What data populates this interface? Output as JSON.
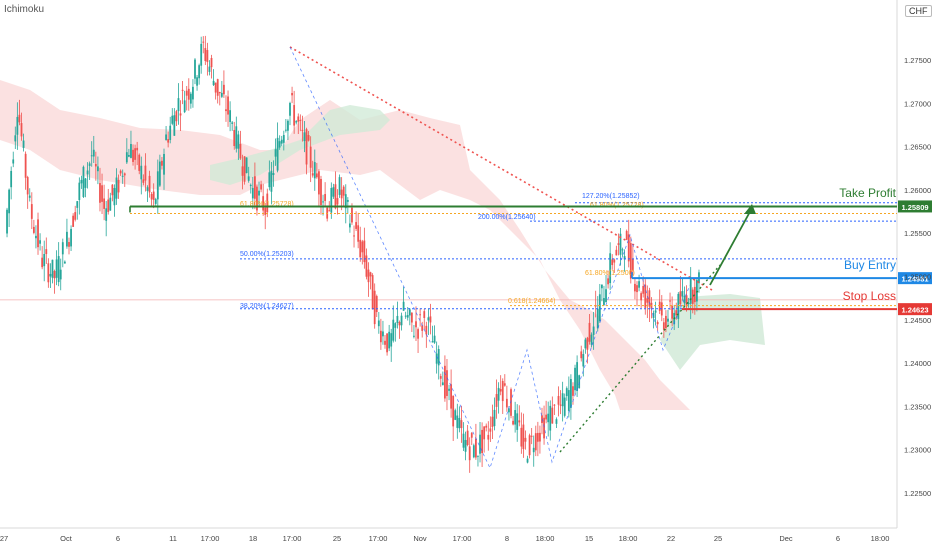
{
  "indicator_label": "Ichimoku",
  "currency_badge": "CHF",
  "colors": {
    "up": "#26a69a",
    "down": "#ef5350",
    "cloud_bear": "#f8c9c9",
    "cloud_bull": "#cfe9d6",
    "trend_red": "#ef5350",
    "fib_blue": "#2962ff",
    "fib_orange": "#f5a623",
    "take_profit": "#2e7d32",
    "buy_entry": "#1e88e5",
    "stop_loss": "#e53935",
    "projection": "#2e7d32"
  },
  "chart_data": {
    "type": "candlestick",
    "symbol_currency": "CHF",
    "ylim": [
      1.22,
      1.28
    ],
    "y_ticks": [
      "1.27500",
      "1.27000",
      "1.26500",
      "1.26000",
      "1.25500",
      "1.25000",
      "1.24500",
      "1.24000",
      "1.23500",
      "1.23000",
      "1.22500"
    ],
    "x_ticks": [
      "27",
      "Oct",
      "6",
      "11",
      "17:00",
      "18",
      "17:00",
      "25",
      "17:00",
      "Nov",
      "17:00",
      "8",
      "18:00",
      "15",
      "18:00",
      "22",
      "25",
      "Dec",
      "6",
      "18:00"
    ],
    "price_path": [
      [
        1.255,
        1.27,
        1.258,
        1.252,
        1.25,
        1.254,
        1.26,
        1.264,
        1.258,
        1.26,
        1.265,
        1.262,
        1.258,
        1.266,
        1.27,
        1.272,
        1.2765,
        1.272,
        1.269,
        1.264,
        1.26,
        1.258,
        1.265,
        1.27,
        1.266,
        1.262,
        1.258,
        1.26,
        1.256,
        1.252,
        1.245,
        1.242,
        1.246,
        1.244,
        1.245,
        1.24,
        1.235,
        1.231,
        1.23,
        1.232,
        1.238,
        1.234,
        1.23,
        1.232,
        1.234,
        1.235,
        1.238,
        1.243,
        1.247,
        1.252,
        1.254,
        1.249,
        1.247,
        1.245,
        1.246,
        1.248,
        1.249
      ]
    ],
    "price_labels": [
      {
        "name": "Take Profit",
        "value": "1.25809"
      },
      {
        "name": "Buy Entry",
        "value": "1.24981"
      },
      {
        "name": "Stop Loss",
        "value": "1.24623"
      }
    ],
    "fib_labels": [
      {
        "text": "127.20%(1.25852)",
        "value": 1.25852,
        "color": "blue"
      },
      {
        "text": "61.80%(1.25728)",
        "value": 1.25728,
        "color": "orange"
      },
      {
        "text": "200.00%(1.25640)",
        "value": 1.2564,
        "color": "blue"
      },
      {
        "text": "61.80%(1.25728)",
        "value": 1.25728,
        "color": "orange",
        "left": true
      },
      {
        "text": "50.00%(1.25203)",
        "value": 1.25203,
        "color": "blue"
      },
      {
        "text": "61.80%(1.2500)",
        "value": 1.25,
        "color": "orange"
      },
      {
        "text": "0.618(1.24664)",
        "value": 1.24664,
        "color": "orange"
      },
      {
        "text": "38.20%(1.24627)",
        "value": 1.24627,
        "color": "blue"
      }
    ],
    "grid": false,
    "legend": "none"
  }
}
